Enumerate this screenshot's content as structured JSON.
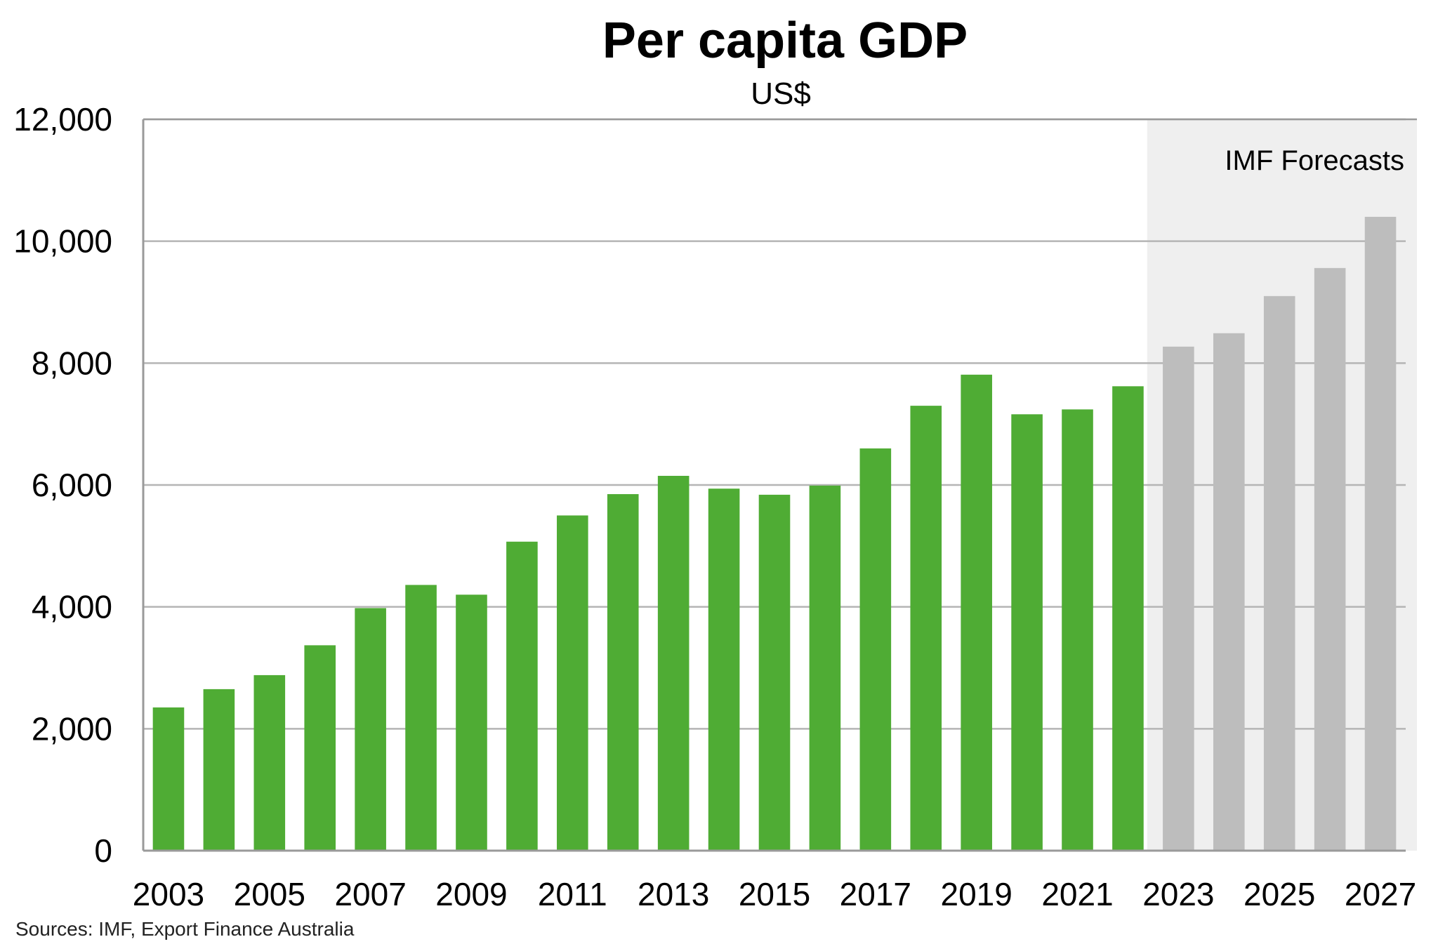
{
  "chart_data": {
    "type": "bar",
    "title": "Per capita GDP",
    "subtitle": "US$",
    "xlabel": "",
    "ylabel": "",
    "ylim": [
      0,
      12000
    ],
    "yticks": [
      "0",
      "2,000",
      "4,000",
      "6,000",
      "8,000",
      "10,000",
      "12,000"
    ],
    "ytick_values": [
      0,
      2000,
      4000,
      6000,
      8000,
      10000,
      12000
    ],
    "categories": [
      "2003",
      "2004",
      "2005",
      "2006",
      "2007",
      "2008",
      "2009",
      "2010",
      "2011",
      "2012",
      "2013",
      "2014",
      "2015",
      "2016",
      "2017",
      "2018",
      "2019",
      "2020",
      "2021",
      "2022",
      "2023",
      "2024",
      "2025",
      "2026",
      "2027"
    ],
    "xtick_labels": [
      "2003",
      "2005",
      "2007",
      "2009",
      "2011",
      "2013",
      "2015",
      "2017",
      "2019",
      "2021",
      "2023",
      "2025",
      "2027"
    ],
    "series": [
      {
        "values": [
          2350,
          2650,
          2880,
          3370,
          3980,
          4360,
          4200,
          5070,
          5500,
          5850,
          6150,
          5940,
          5840,
          5990,
          6600,
          7300,
          7810,
          7160,
          7240,
          7620,
          8270,
          8490,
          9100,
          9560,
          10400
        ]
      }
    ],
    "forecast_start": "2023",
    "annotation": "IMF Forecasts",
    "grid": true,
    "colors": {
      "actual": "#4fac34",
      "forecast": "#bdbdbd",
      "forecast_background": "#efefef",
      "grid": "#b5b5b5",
      "axis": "#9a9a9a"
    }
  },
  "source": "Sources: IMF, Export Finance Australia"
}
